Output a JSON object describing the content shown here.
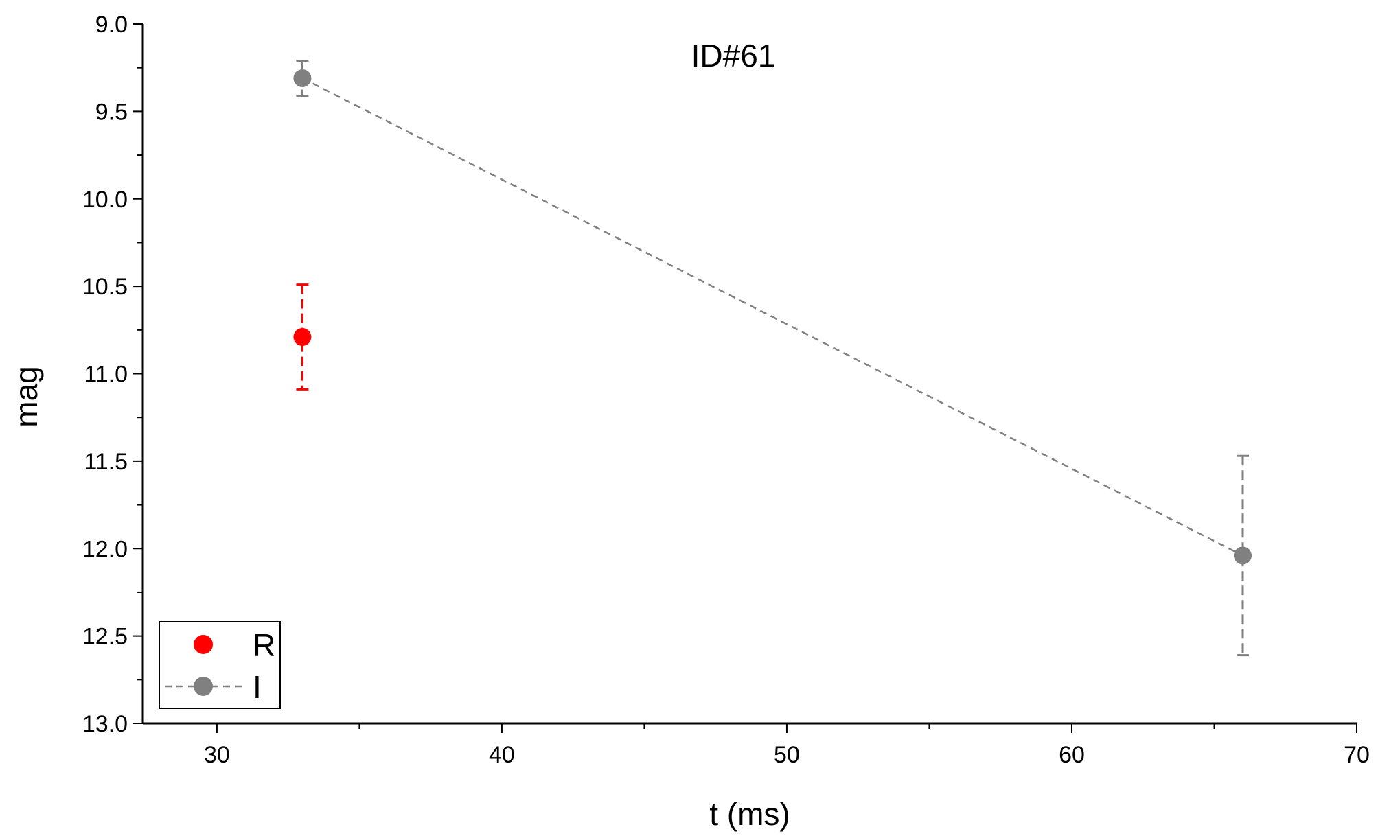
{
  "chart_data": {
    "type": "scatter",
    "title": "ID#61",
    "xlabel": "t (ms)",
    "ylabel": "mag",
    "xlim": [
      27.4,
      70
    ],
    "ylim": [
      9.0,
      13.0
    ],
    "y_inverted": true,
    "grid": false,
    "legend_position": "bottom-left",
    "x_ticks": [
      30,
      40,
      50,
      60,
      70
    ],
    "x_tick_labels": [
      "30",
      "40",
      "50",
      "60",
      "70"
    ],
    "y_ticks": [
      9.0,
      9.5,
      10.0,
      10.5,
      11.0,
      11.5,
      12.0,
      12.5,
      13.0
    ],
    "y_tick_labels": [
      "9.0",
      "9.5",
      "10.0",
      "10.5",
      "11.0",
      "11.5",
      "12.0",
      "12.5",
      "13.0"
    ],
    "series": [
      {
        "name": "R",
        "color": "#ff0000",
        "line": "none",
        "points": [
          {
            "x": 33,
            "y": 10.79,
            "err_low": 10.49,
            "err_high": 11.09
          }
        ]
      },
      {
        "name": "I",
        "color": "#808080",
        "line": "dashed",
        "points": [
          {
            "x": 33,
            "y": 9.31,
            "err_low": 9.21,
            "err_high": 9.41
          },
          {
            "x": 66,
            "y": 12.04,
            "err_low": 11.47,
            "err_high": 12.61
          }
        ]
      }
    ]
  }
}
